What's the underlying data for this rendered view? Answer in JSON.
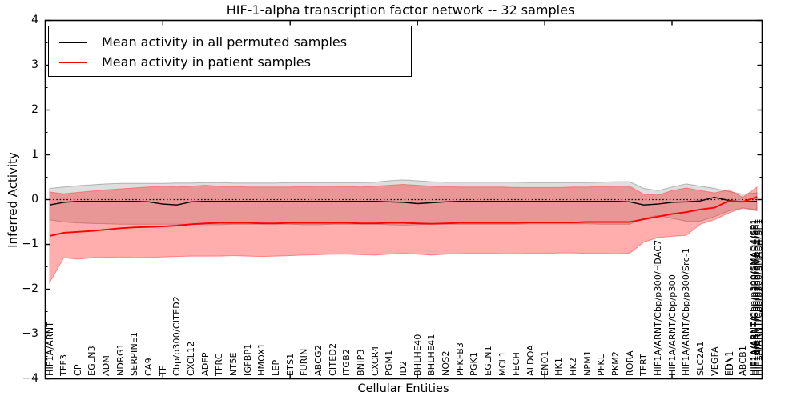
{
  "figure": {
    "title": "HIF-1-alpha transcription factor network -- 32 samples",
    "xlabel": "Cellular Entities",
    "ylabel": "Inferred Activity"
  },
  "legend": {
    "items": [
      {
        "label": "Mean activity in all permuted samples",
        "color": "#000000"
      },
      {
        "label": "Mean activity in patient samples",
        "color": "#ff0000"
      }
    ]
  },
  "chart_data": {
    "type": "line",
    "title": "HIF-1-alpha transcription factor network -- 32 samples",
    "xlabel": "Cellular Entities",
    "ylabel": "Inferred Activity",
    "ylim": [
      -4,
      4
    ],
    "grid": false,
    "legend_position": "upper left",
    "zero_line": {
      "y": 0,
      "style": "dotted",
      "color": "#000000"
    },
    "yticks": {
      "values": [
        4,
        3,
        2,
        1,
        0,
        -1,
        -2,
        -3,
        -4
      ],
      "labels": [
        "4",
        "3",
        "2",
        "1",
        "0",
        "−1",
        "−2",
        "−3",
        "−4"
      ]
    },
    "categories": [
      "HIF1A/ARNT",
      "TFF3",
      "CP",
      "EGLN3",
      "ADM",
      "NDRG1",
      "SERPINE1",
      "CA9",
      "TF",
      "Cbp/p300/CITED2",
      "CXCL12",
      "ADFP",
      "TFRC",
      "NT5E",
      "IGFBP1",
      "HMOX1",
      "LEP",
      "ETS1",
      "FURIN",
      "ABCG2",
      "CITED2",
      "ITGB2",
      "BNIP3",
      "CXCR4",
      "PGM1",
      "ID2",
      "BHLHE40",
      "BHLHE41",
      "NOS2",
      "PFKFB3",
      "PGK1",
      "EGLN1",
      "MCL1",
      "FECH",
      "ALDOA",
      "ENO1",
      "HK1",
      "HK2",
      "NPM1",
      "PFKL",
      "PKM2",
      "RORA",
      "TERT",
      "HIF1A/ARNT/Cbp/p300/HDAC7",
      "HIF1A/ARNT/Cbp/p300",
      "HIF1A/ARNT/Cbp/p300/Src-1",
      "SLC2A1",
      "VEGFA",
      "EDN1",
      "ABCB1",
      "HIF1A/ARNT/Cbp/p300/SMAD4/SP1"
    ],
    "series": [
      {
        "name": "Mean activity in all permuted samples",
        "color": "#000000",
        "values": [
          -0.12,
          -0.06,
          -0.04,
          -0.04,
          -0.04,
          -0.04,
          -0.04,
          -0.05,
          -0.1,
          -0.12,
          -0.05,
          -0.04,
          -0.04,
          -0.04,
          -0.04,
          -0.04,
          -0.04,
          -0.04,
          -0.04,
          -0.04,
          -0.04,
          -0.04,
          -0.04,
          -0.04,
          -0.05,
          -0.06,
          -0.09,
          -0.07,
          -0.05,
          -0.04,
          -0.04,
          -0.04,
          -0.04,
          -0.04,
          -0.04,
          -0.04,
          -0.04,
          -0.04,
          -0.04,
          -0.04,
          -0.04,
          -0.05,
          -0.12,
          -0.1,
          -0.06,
          -0.05,
          -0.03,
          0.05,
          -0.02,
          -0.05,
          -0.04
        ]
      },
      {
        "name": "Mean activity in patient samples",
        "color": "#ff0000",
        "values": [
          -0.81,
          -0.74,
          -0.72,
          -0.7,
          -0.67,
          -0.64,
          -0.62,
          -0.61,
          -0.6,
          -0.58,
          -0.55,
          -0.53,
          -0.52,
          -0.52,
          -0.52,
          -0.53,
          -0.53,
          -0.52,
          -0.52,
          -0.52,
          -0.52,
          -0.52,
          -0.53,
          -0.53,
          -0.52,
          -0.52,
          -0.53,
          -0.54,
          -0.53,
          -0.52,
          -0.52,
          -0.52,
          -0.52,
          -0.52,
          -0.51,
          -0.51,
          -0.51,
          -0.51,
          -0.5,
          -0.5,
          -0.5,
          -0.5,
          -0.44,
          -0.38,
          -0.32,
          -0.28,
          -0.22,
          -0.18,
          -0.03,
          -0.05,
          0.06
        ]
      }
    ],
    "bands": [
      {
        "name": "permuted samples ± std",
        "fill": "rgba(0,0,0,0.13)",
        "edge": "rgba(120,120,120,0.5)",
        "upper": [
          0.25,
          0.28,
          0.31,
          0.33,
          0.35,
          0.36,
          0.36,
          0.36,
          0.36,
          0.37,
          0.37,
          0.38,
          0.38,
          0.37,
          0.37,
          0.37,
          0.37,
          0.38,
          0.38,
          0.38,
          0.38,
          0.38,
          0.38,
          0.39,
          0.42,
          0.44,
          0.42,
          0.4,
          0.39,
          0.39,
          0.39,
          0.39,
          0.39,
          0.39,
          0.38,
          0.38,
          0.38,
          0.38,
          0.38,
          0.39,
          0.4,
          0.4,
          0.25,
          0.2,
          0.28,
          0.35,
          0.3,
          0.25,
          0.18,
          0.12,
          0.15
        ],
        "lower": [
          -0.45,
          -0.5,
          -0.52,
          -0.53,
          -0.54,
          -0.55,
          -0.55,
          -0.55,
          -0.55,
          -0.55,
          -0.55,
          -0.56,
          -0.56,
          -0.55,
          -0.55,
          -0.55,
          -0.55,
          -0.55,
          -0.56,
          -0.56,
          -0.55,
          -0.55,
          -0.55,
          -0.55,
          -0.56,
          -0.57,
          -0.56,
          -0.55,
          -0.55,
          -0.55,
          -0.55,
          -0.55,
          -0.55,
          -0.55,
          -0.54,
          -0.54,
          -0.54,
          -0.54,
          -0.54,
          -0.55,
          -0.55,
          -0.55,
          -0.42,
          -0.35,
          -0.42,
          -0.48,
          -0.48,
          -0.38,
          -0.25,
          -0.2,
          -0.22
        ]
      },
      {
        "name": "patient samples ± std",
        "fill": "rgba(255,0,0,0.32)",
        "edge": "rgba(255,70,70,0.55)",
        "upper": [
          0.17,
          0.13,
          0.16,
          0.19,
          0.22,
          0.24,
          0.26,
          0.28,
          0.3,
          0.28,
          0.3,
          0.32,
          0.3,
          0.29,
          0.28,
          0.28,
          0.28,
          0.28,
          0.29,
          0.3,
          0.3,
          0.29,
          0.28,
          0.3,
          0.32,
          0.34,
          0.32,
          0.3,
          0.29,
          0.28,
          0.28,
          0.28,
          0.28,
          0.27,
          0.27,
          0.27,
          0.27,
          0.28,
          0.28,
          0.29,
          0.3,
          0.3,
          0.12,
          0.1,
          0.2,
          0.26,
          0.2,
          0.15,
          0.22,
          0.05,
          0.28
        ],
        "lower": [
          -1.85,
          -1.3,
          -1.33,
          -1.3,
          -1.29,
          -1.28,
          -1.3,
          -1.29,
          -1.28,
          -1.27,
          -1.26,
          -1.26,
          -1.26,
          -1.25,
          -1.26,
          -1.27,
          -1.26,
          -1.25,
          -1.24,
          -1.23,
          -1.22,
          -1.22,
          -1.23,
          -1.24,
          -1.22,
          -1.2,
          -1.22,
          -1.24,
          -1.22,
          -1.21,
          -1.2,
          -1.2,
          -1.21,
          -1.21,
          -1.2,
          -1.2,
          -1.19,
          -1.19,
          -1.2,
          -1.2,
          -1.21,
          -1.2,
          -0.95,
          -0.85,
          -0.82,
          -0.8,
          -0.55,
          -0.45,
          -0.3,
          -0.18,
          -0.25
        ]
      }
    ],
    "xtick_mark_indices": [
      8,
      17,
      26,
      35,
      44
    ],
    "overlap_note": "rightmost entity labels are drawn heavily overlapped and mostly illegible; the legible tail reads /SMAD4/SP1"
  }
}
